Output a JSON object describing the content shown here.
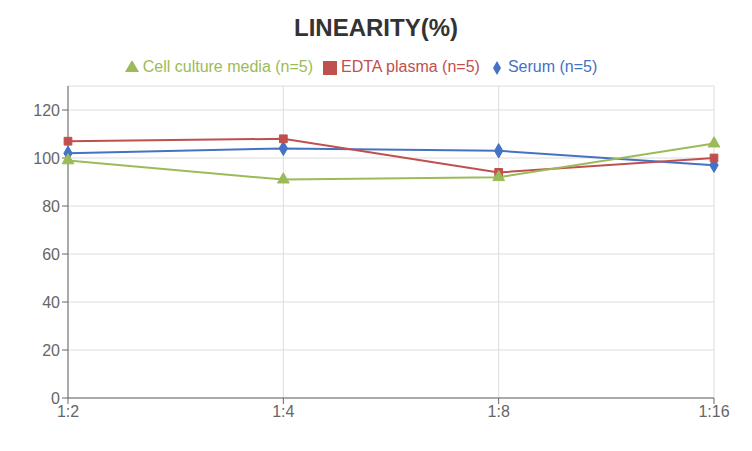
{
  "chart_data": {
    "type": "line",
    "title": "LINEARITY(%)",
    "categories": [
      "1:2",
      "1:4",
      "1:8",
      "1:16"
    ],
    "series": [
      {
        "name": "Serum (n=5)",
        "color": "#4472C4",
        "marker": "diamond",
        "values": [
          102,
          104,
          103,
          97
        ]
      },
      {
        "name": "EDTA plasma (n=5)",
        "color": "#C0504D",
        "marker": "square",
        "values": [
          107,
          108,
          94,
          100
        ]
      },
      {
        "name": "Cell culture media (n=5)",
        "color": "#9BBB59",
        "marker": "triangle",
        "values": [
          99,
          91,
          92,
          106
        ]
      }
    ],
    "ylim": [
      0,
      130
    ],
    "yticks": [
      0,
      20,
      40,
      60,
      80,
      100,
      120
    ],
    "grid": true,
    "legend": "top"
  }
}
